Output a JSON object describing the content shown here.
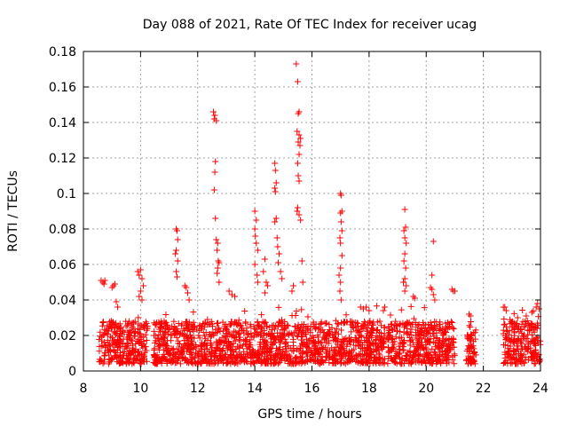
{
  "chart_data": {
    "type": "scatter",
    "title": "Day 088 of 2021, Rate Of TEC Index for receiver ucag",
    "xlabel": "GPS time / hours",
    "ylabel": "ROTI / TECUs",
    "xlim": [
      8,
      24
    ],
    "ylim": [
      0,
      0.18
    ],
    "xticks": [
      "8",
      "10",
      "12",
      "14",
      "16",
      "18",
      "20",
      "22",
      "24"
    ],
    "yticks": [
      "0",
      "0.02",
      "0.04",
      "0.06",
      "0.08",
      "0.1",
      "0.12",
      "0.14",
      "0.16",
      "0.18"
    ],
    "grid": true,
    "marker": "+",
    "color": "#ff0000",
    "data_coverage_hours": [
      [
        8.55,
        10.25
      ],
      [
        10.45,
        18.55
      ],
      [
        18.65,
        21.0
      ],
      [
        21.4,
        21.75
      ],
      [
        22.7,
        24.0
      ]
    ],
    "background_level": {
      "typical_low": 0.004,
      "typical_high": 0.028
    },
    "spike_points": [
      [
        8.62,
        0.051
      ],
      [
        8.68,
        0.05
      ],
      [
        8.72,
        0.049
      ],
      [
        8.75,
        0.051
      ],
      [
        9.05,
        0.048
      ],
      [
        9.1,
        0.049
      ],
      [
        9.0,
        0.047
      ],
      [
        9.15,
        0.039
      ],
      [
        9.2,
        0.036
      ],
      [
        9.9,
        0.056
      ],
      [
        9.95,
        0.054
      ],
      [
        10.0,
        0.057
      ],
      [
        10.05,
        0.052
      ],
      [
        10.1,
        0.048
      ],
      [
        10.0,
        0.045
      ],
      [
        9.95,
        0.042
      ],
      [
        10.05,
        0.04
      ],
      [
        11.25,
        0.08
      ],
      [
        11.28,
        0.079
      ],
      [
        11.3,
        0.074
      ],
      [
        11.25,
        0.068
      ],
      [
        11.22,
        0.066
      ],
      [
        11.3,
        0.062
      ],
      [
        11.25,
        0.056
      ],
      [
        11.28,
        0.053
      ],
      [
        11.55,
        0.048
      ],
      [
        11.6,
        0.047
      ],
      [
        11.65,
        0.044
      ],
      [
        11.7,
        0.04
      ],
      [
        12.55,
        0.146
      ],
      [
        12.6,
        0.144
      ],
      [
        12.58,
        0.142
      ],
      [
        12.65,
        0.141
      ],
      [
        12.62,
        0.118
      ],
      [
        12.6,
        0.112
      ],
      [
        12.58,
        0.102
      ],
      [
        12.62,
        0.086
      ],
      [
        12.65,
        0.074
      ],
      [
        12.7,
        0.072
      ],
      [
        12.68,
        0.068
      ],
      [
        12.72,
        0.062
      ],
      [
        12.75,
        0.061
      ],
      [
        12.7,
        0.058
      ],
      [
        12.68,
        0.055
      ],
      [
        12.75,
        0.05
      ],
      [
        13.1,
        0.045
      ],
      [
        13.2,
        0.043
      ],
      [
        13.3,
        0.042
      ],
      [
        14.0,
        0.09
      ],
      [
        14.05,
        0.085
      ],
      [
        14.0,
        0.08
      ],
      [
        14.02,
        0.076
      ],
      [
        14.05,
        0.072
      ],
      [
        14.1,
        0.068
      ],
      [
        14.0,
        0.06
      ],
      [
        14.08,
        0.054
      ],
      [
        14.1,
        0.05
      ],
      [
        14.3,
        0.056
      ],
      [
        14.35,
        0.063
      ],
      [
        14.4,
        0.05
      ],
      [
        14.45,
        0.048
      ],
      [
        14.35,
        0.044
      ],
      [
        14.7,
        0.117
      ],
      [
        14.72,
        0.113
      ],
      [
        14.75,
        0.106
      ],
      [
        14.7,
        0.103
      ],
      [
        14.72,
        0.101
      ],
      [
        14.75,
        0.086
      ],
      [
        14.7,
        0.084
      ],
      [
        14.78,
        0.075
      ],
      [
        14.8,
        0.07
      ],
      [
        14.85,
        0.066
      ],
      [
        14.82,
        0.061
      ],
      [
        14.9,
        0.056
      ],
      [
        14.95,
        0.052
      ],
      [
        15.45,
        0.173
      ],
      [
        15.5,
        0.163
      ],
      [
        15.55,
        0.146
      ],
      [
        15.52,
        0.145
      ],
      [
        15.48,
        0.135
      ],
      [
        15.55,
        0.133
      ],
      [
        15.6,
        0.131
      ],
      [
        15.52,
        0.129
      ],
      [
        15.58,
        0.127
      ],
      [
        15.55,
        0.122
      ],
      [
        15.5,
        0.117
      ],
      [
        15.52,
        0.11
      ],
      [
        15.55,
        0.107
      ],
      [
        15.5,
        0.092
      ],
      [
        15.48,
        0.09
      ],
      [
        15.55,
        0.088
      ],
      [
        15.6,
        0.085
      ],
      [
        15.65,
        0.062
      ],
      [
        15.68,
        0.05
      ],
      [
        15.3,
        0.045
      ],
      [
        15.35,
        0.048
      ],
      [
        17.0,
        0.1
      ],
      [
        17.02,
        0.099
      ],
      [
        17.05,
        0.09
      ],
      [
        17.0,
        0.089
      ],
      [
        17.02,
        0.084
      ],
      [
        17.05,
        0.079
      ],
      [
        16.98,
        0.075
      ],
      [
        17.0,
        0.072
      ],
      [
        17.05,
        0.065
      ],
      [
        17.0,
        0.058
      ],
      [
        16.95,
        0.054
      ],
      [
        17.0,
        0.05
      ],
      [
        16.98,
        0.045
      ],
      [
        17.02,
        0.04
      ],
      [
        17.7,
        0.036
      ],
      [
        17.8,
        0.035
      ],
      [
        17.9,
        0.036
      ],
      [
        18.0,
        0.034
      ],
      [
        18.5,
        0.034
      ],
      [
        18.55,
        0.036
      ],
      [
        19.25,
        0.091
      ],
      [
        19.28,
        0.081
      ],
      [
        19.22,
        0.079
      ],
      [
        19.25,
        0.075
      ],
      [
        19.3,
        0.072
      ],
      [
        19.25,
        0.066
      ],
      [
        19.22,
        0.062
      ],
      [
        19.28,
        0.058
      ],
      [
        19.25,
        0.052
      ],
      [
        19.2,
        0.05
      ],
      [
        19.3,
        0.048
      ],
      [
        19.25,
        0.045
      ],
      [
        19.55,
        0.042
      ],
      [
        19.6,
        0.041
      ],
      [
        20.25,
        0.073
      ],
      [
        20.2,
        0.054
      ],
      [
        20.15,
        0.047
      ],
      [
        20.2,
        0.046
      ],
      [
        20.25,
        0.043
      ],
      [
        20.3,
        0.04
      ],
      [
        20.9,
        0.046
      ],
      [
        20.95,
        0.045
      ],
      [
        21.0,
        0.045
      ],
      [
        21.5,
        0.032
      ],
      [
        21.55,
        0.031
      ],
      [
        22.75,
        0.036
      ],
      [
        22.8,
        0.034
      ],
      [
        23.2,
        0.03
      ],
      [
        23.5,
        0.031
      ],
      [
        23.7,
        0.033
      ],
      [
        23.85,
        0.036
      ],
      [
        23.9,
        0.038
      ],
      [
        23.95,
        0.035
      ]
    ]
  }
}
